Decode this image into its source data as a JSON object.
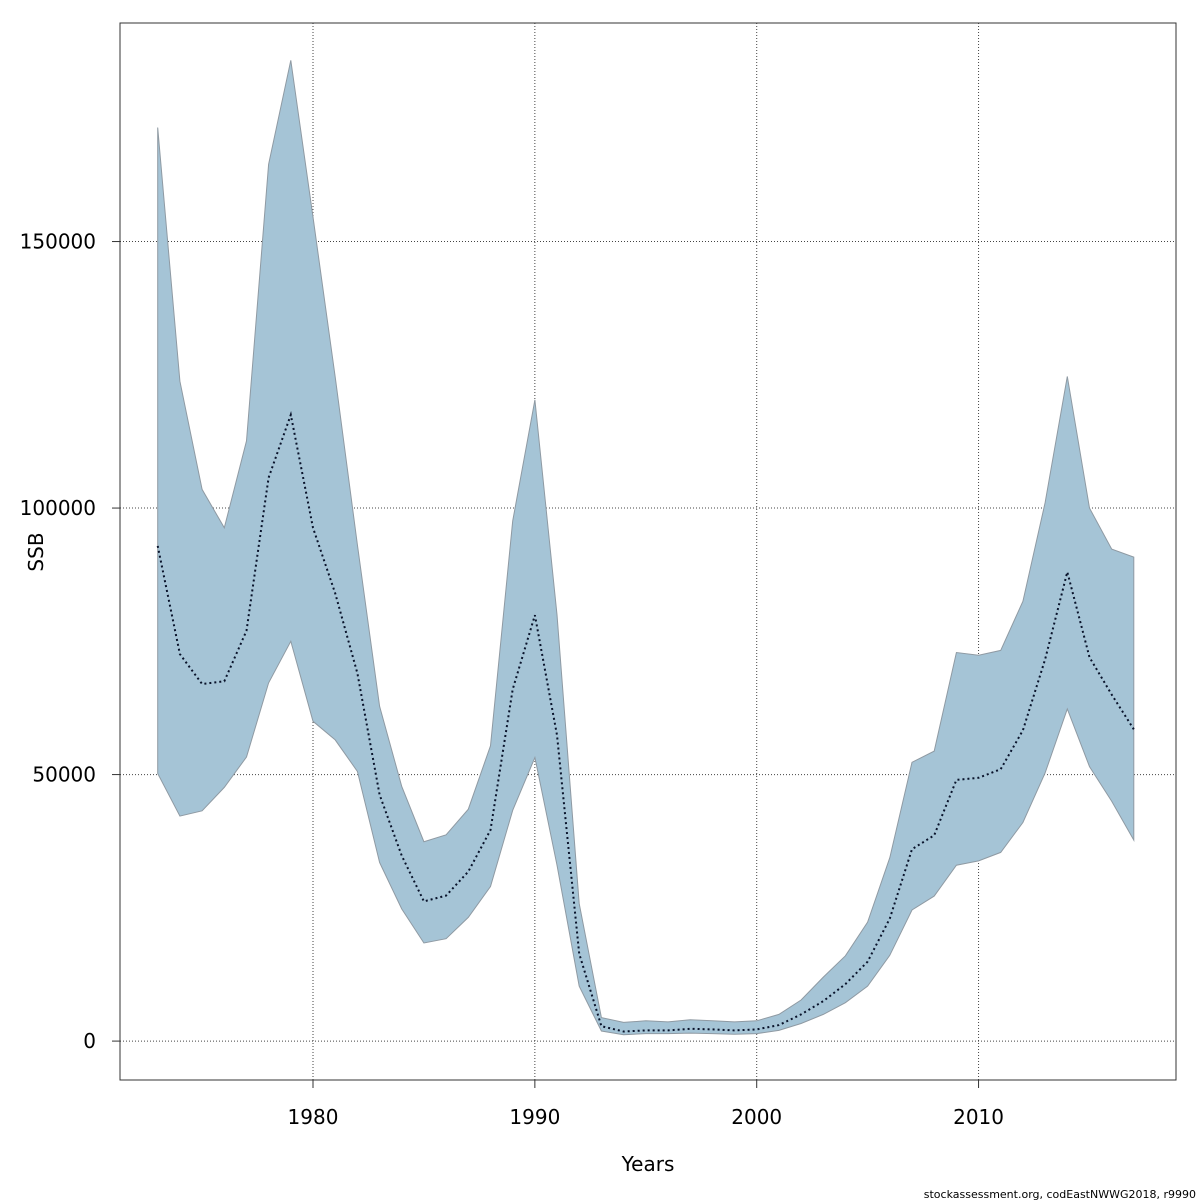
{
  "chart_data": {
    "type": "area",
    "xlabel": "Years",
    "ylabel": "SSB",
    "xlim": [
      1971.3,
      2018.9
    ],
    "ylim": [
      -7300,
      191000
    ],
    "x_ticks": [
      1980,
      1990,
      2000,
      2010
    ],
    "x_tick_labels": [
      "1980",
      "1990",
      "2000",
      "2010"
    ],
    "y_ticks": [
      0,
      50000,
      100000,
      150000
    ],
    "y_tick_labels": [
      "0",
      "50000",
      "100000",
      "150000"
    ],
    "grid": true,
    "colors": {
      "band": "#a5c4d6",
      "band_edge": "#8f9aa3",
      "line": "#08122a",
      "grid": "#444444"
    },
    "years": [
      1973,
      1974,
      1975,
      1976,
      1977,
      1978,
      1979,
      1980,
      1981,
      1982,
      1983,
      1984,
      1985,
      1986,
      1987,
      1988,
      1989,
      1990,
      1991,
      1992,
      1993,
      1994,
      1995,
      1996,
      1997,
      1998,
      1999,
      2000,
      2001,
      2002,
      2003,
      2004,
      2005,
      2006,
      2007,
      2008,
      2009,
      2010,
      2011,
      2012,
      2013,
      2014,
      2015,
      2016,
      2017
    ],
    "series": [
      {
        "name": "upper",
        "values": [
          171400,
          123800,
          103500,
          96300,
          112600,
          164500,
          184000,
          154600,
          124600,
          93100,
          62800,
          47800,
          37400,
          38700,
          43500,
          55400,
          97600,
          120300,
          80000,
          25800,
          4400,
          3500,
          3800,
          3600,
          4000,
          3800,
          3600,
          3800,
          5000,
          7700,
          12000,
          16000,
          22300,
          34400,
          52300,
          54400,
          72900,
          72400,
          73300,
          82500,
          101000,
          124700,
          100000,
          92300,
          90800
        ]
      },
      {
        "name": "estimate",
        "values": [
          92900,
          72600,
          67000,
          67500,
          77000,
          105700,
          117500,
          96300,
          84000,
          69000,
          46200,
          34800,
          26200,
          27300,
          31800,
          39600,
          66000,
          79900,
          57400,
          16400,
          2800,
          1800,
          2000,
          2000,
          2300,
          2200,
          2000,
          2200,
          3000,
          5000,
          7500,
          10700,
          14900,
          23000,
          36000,
          38600,
          49000,
          49400,
          51000,
          58300,
          71600,
          88000,
          72000,
          65000,
          58500
        ]
      },
      {
        "name": "lower",
        "values": [
          50200,
          42200,
          43200,
          47600,
          53300,
          67200,
          75000,
          60000,
          56500,
          50600,
          33500,
          24800,
          18400,
          19200,
          23200,
          29000,
          43300,
          53200,
          33000,
          10300,
          1900,
          1200,
          1400,
          1400,
          1500,
          1400,
          1300,
          1400,
          2000,
          3300,
          5000,
          7200,
          10300,
          16100,
          24600,
          27200,
          33000,
          33800,
          35400,
          41000,
          50300,
          62300,
          51500,
          45000,
          37700
        ]
      }
    ],
    "footer": "stockassessment.org, codEastNWWG2018, r9990"
  }
}
